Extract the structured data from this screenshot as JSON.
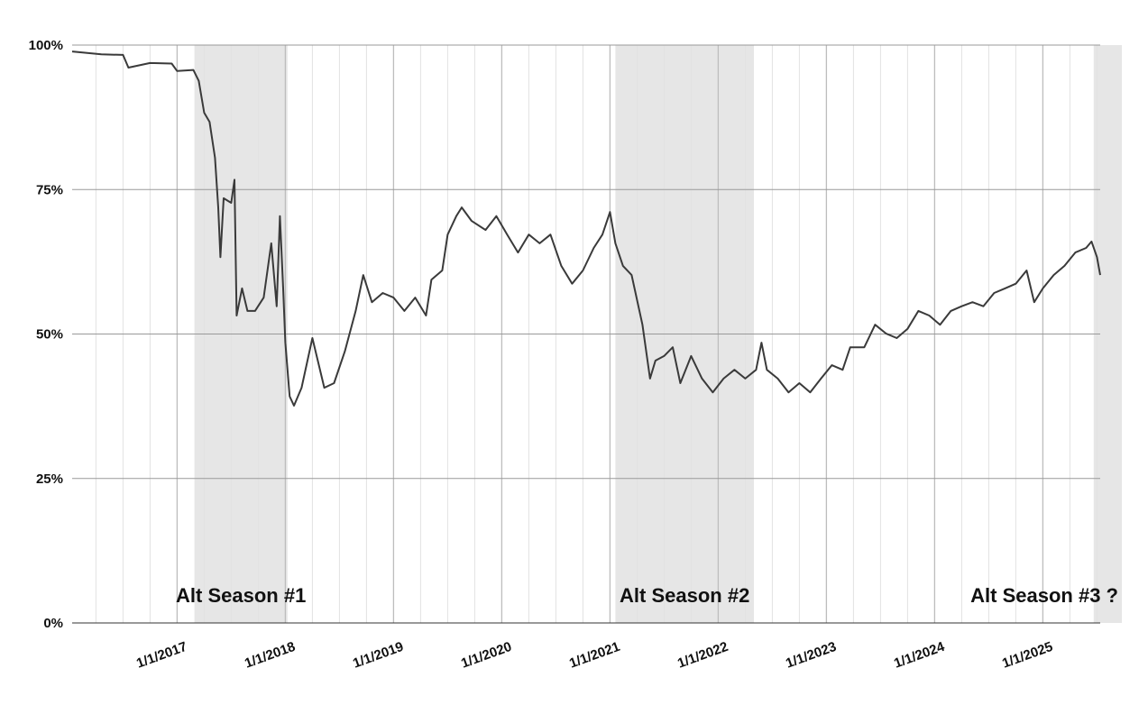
{
  "chart_data": {
    "type": "line",
    "xlim": [
      2016.03,
      2025.73
    ],
    "xticks": [
      {
        "value": 2017,
        "label": "1/1/2017"
      },
      {
        "value": 2018,
        "label": "1/1/2018"
      },
      {
        "value": 2019,
        "label": "1/1/2019"
      },
      {
        "value": 2020,
        "label": "1/1/2020"
      },
      {
        "value": 2021,
        "label": "1/1/2021"
      },
      {
        "value": 2022,
        "label": "1/1/2022"
      },
      {
        "value": 2023,
        "label": "1/1/2023"
      },
      {
        "value": 2024,
        "label": "1/1/2024"
      },
      {
        "value": 2025,
        "label": "1/1/2025"
      }
    ],
    "ylim": [
      0,
      100
    ],
    "yticks": [
      {
        "value": 0,
        "label": "0%"
      },
      {
        "value": 25,
        "label": "25%"
      },
      {
        "value": 50,
        "label": "50%"
      },
      {
        "value": 75,
        "label": "75%"
      },
      {
        "value": 100,
        "label": "100%"
      }
    ],
    "grid": true,
    "regions": [
      {
        "label": "Alt Season #1",
        "span": [
          2017.16,
          2018.02
        ]
      },
      {
        "label": "Alt Season #2",
        "span": [
          2021.05,
          2022.33
        ]
      },
      {
        "label": "Alt Season #3 ?",
        "span": [
          2025.47,
          2025.73
        ]
      }
    ],
    "series": [
      {
        "color": "#3a3a3a",
        "x": [
          2016.03,
          2016.3,
          2016.5,
          2016.55,
          2016.75,
          2016.95,
          2017.0,
          2017.15,
          2017.2,
          2017.25,
          2017.3,
          2017.35,
          2017.38,
          2017.4,
          2017.43,
          2017.5,
          2017.53,
          2017.55,
          2017.6,
          2017.65,
          2017.72,
          2017.8,
          2017.87,
          2017.92,
          2017.95,
          2017.98,
          2018.0,
          2018.04,
          2018.08,
          2018.15,
          2018.25,
          2018.3,
          2018.36,
          2018.45,
          2018.55,
          2018.65,
          2018.72,
          2018.8,
          2018.9,
          2019.0,
          2019.1,
          2019.2,
          2019.3,
          2019.35,
          2019.45,
          2019.5,
          2019.58,
          2019.63,
          2019.72,
          2019.85,
          2019.95,
          2020.05,
          2020.15,
          2020.25,
          2020.35,
          2020.45,
          2020.55,
          2020.65,
          2020.75,
          2020.85,
          2020.93,
          2021.0,
          2021.05,
          2021.12,
          2021.2,
          2021.3,
          2021.37,
          2021.42,
          2021.5,
          2021.58,
          2021.65,
          2021.75,
          2021.85,
          2021.95,
          2022.05,
          2022.15,
          2022.25,
          2022.35,
          2022.4,
          2022.45,
          2022.55,
          2022.65,
          2022.75,
          2022.85,
          2022.95,
          2023.05,
          2023.15,
          2023.22,
          2023.35,
          2023.45,
          2023.55,
          2023.65,
          2023.75,
          2023.85,
          2023.95,
          2024.05,
          2024.15,
          2024.25,
          2024.35,
          2024.45,
          2024.55,
          2024.65,
          2024.75,
          2024.85,
          2024.92,
          2025.0,
          2025.1,
          2025.2,
          2025.3,
          2025.4,
          2025.45,
          2025.5,
          2025.53
        ],
        "values": [
          98.9,
          98.4,
          98.3,
          96.1,
          96.9,
          96.8,
          95.5,
          95.7,
          93.8,
          88.3,
          86.7,
          80.5,
          71.9,
          63.3,
          73.5,
          72.7,
          76.7,
          53.2,
          57.9,
          54,
          54,
          56.3,
          65.7,
          54.8,
          70.4,
          57.9,
          48.5,
          39.2,
          37.6,
          40.7,
          49.3,
          45.4,
          40.7,
          41.5,
          47,
          54,
          60.2,
          55.5,
          57.1,
          56.3,
          54,
          56.3,
          53.2,
          59.4,
          61,
          67.2,
          70.4,
          71.9,
          69.6,
          68,
          70.4,
          67.2,
          64.1,
          67.2,
          65.7,
          67.2,
          61.8,
          58.7,
          61,
          64.9,
          67.2,
          71.1,
          65.7,
          61.8,
          60.2,
          51.6,
          42.3,
          45.4,
          46.2,
          47.7,
          41.5,
          46.2,
          42.3,
          39.9,
          42.3,
          43.8,
          42.3,
          43.8,
          48.5,
          43.8,
          42.3,
          39.9,
          41.5,
          39.9,
          42.3,
          44.6,
          43.8,
          47.7,
          47.7,
          51.6,
          50.1,
          49.3,
          50.9,
          54,
          53.2,
          51.6,
          54,
          54.8,
          55.5,
          54.8,
          57.1,
          57.9,
          58.7,
          61,
          55.5,
          57.9,
          60.2,
          61.8,
          64.1,
          64.9,
          66,
          63.3,
          60.2
        ]
      }
    ]
  }
}
